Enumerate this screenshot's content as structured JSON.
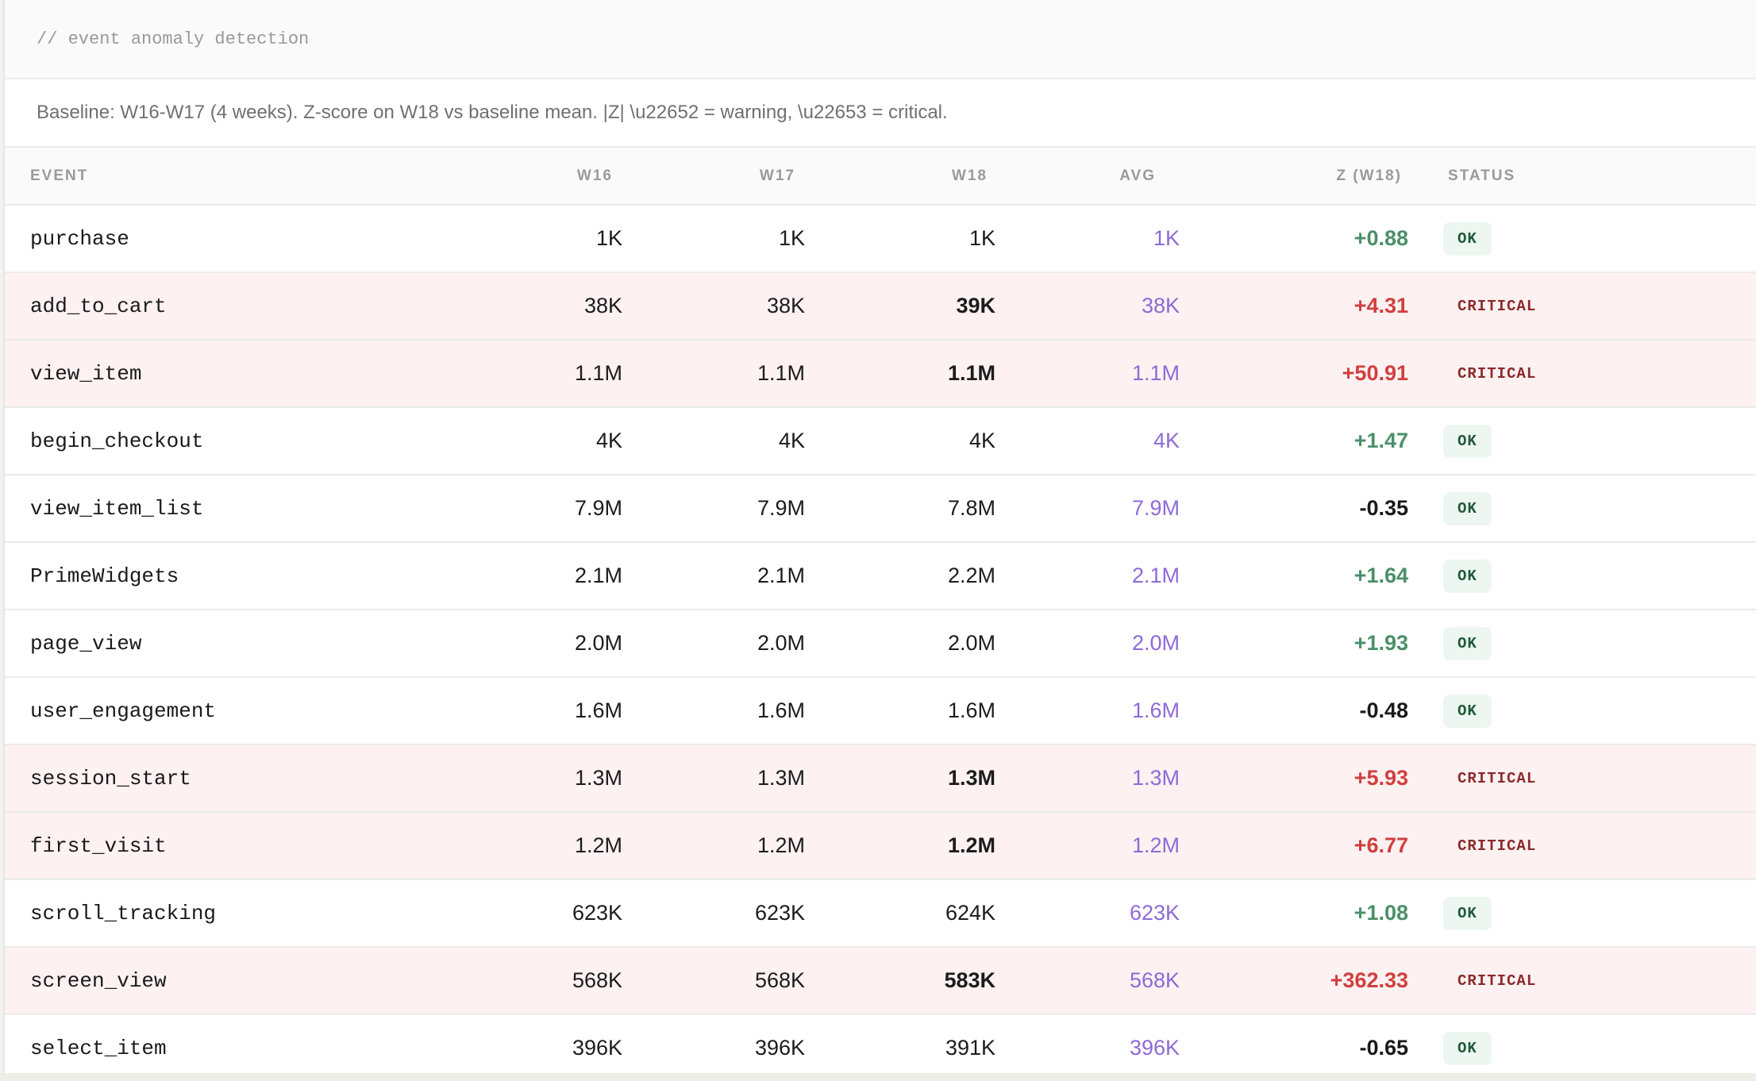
{
  "header": {
    "title": "// event anomaly detection",
    "subtitle": "Baseline: W16-W17 (4 weeks). Z-score on W18 vs baseline mean. |Z| \\u22652 = warning, \\u22653 = critical."
  },
  "table": {
    "columns": {
      "event": "EVENT",
      "w16": "W16",
      "w17": "W17",
      "w18": "W18",
      "avg": "AVG",
      "z": "Z (W18)",
      "status": "STATUS"
    },
    "rows": [
      {
        "event": "purchase",
        "w16": "1K",
        "w17": "1K",
        "w18": "1K",
        "avg": "1K",
        "z": "+0.88",
        "status": "OK"
      },
      {
        "event": "add_to_cart",
        "w16": "38K",
        "w17": "38K",
        "w18": "39K",
        "avg": "38K",
        "z": "+4.31",
        "status": "CRITICAL"
      },
      {
        "event": "view_item",
        "w16": "1.1M",
        "w17": "1.1M",
        "w18": "1.1M",
        "avg": "1.1M",
        "z": "+50.91",
        "status": "CRITICAL"
      },
      {
        "event": "begin_checkout",
        "w16": "4K",
        "w17": "4K",
        "w18": "4K",
        "avg": "4K",
        "z": "+1.47",
        "status": "OK"
      },
      {
        "event": "view_item_list",
        "w16": "7.9M",
        "w17": "7.9M",
        "w18": "7.8M",
        "avg": "7.9M",
        "z": "-0.35",
        "status": "OK"
      },
      {
        "event": "PrimeWidgets",
        "w16": "2.1M",
        "w17": "2.1M",
        "w18": "2.2M",
        "avg": "2.1M",
        "z": "+1.64",
        "status": "OK"
      },
      {
        "event": "page_view",
        "w16": "2.0M",
        "w17": "2.0M",
        "w18": "2.0M",
        "avg": "2.0M",
        "z": "+1.93",
        "status": "OK"
      },
      {
        "event": "user_engagement",
        "w16": "1.6M",
        "w17": "1.6M",
        "w18": "1.6M",
        "avg": "1.6M",
        "z": "-0.48",
        "status": "OK"
      },
      {
        "event": "session_start",
        "w16": "1.3M",
        "w17": "1.3M",
        "w18": "1.3M",
        "avg": "1.3M",
        "z": "+5.93",
        "status": "CRITICAL"
      },
      {
        "event": "first_visit",
        "w16": "1.2M",
        "w17": "1.2M",
        "w18": "1.2M",
        "avg": "1.2M",
        "z": "+6.77",
        "status": "CRITICAL"
      },
      {
        "event": "scroll_tracking",
        "w16": "623K",
        "w17": "623K",
        "w18": "624K",
        "avg": "623K",
        "z": "+1.08",
        "status": "OK"
      },
      {
        "event": "screen_view",
        "w16": "568K",
        "w17": "568K",
        "w18": "583K",
        "avg": "568K",
        "z": "+362.33",
        "status": "CRITICAL"
      },
      {
        "event": "select_item",
        "w16": "396K",
        "w17": "396K",
        "w18": "391K",
        "avg": "396K",
        "z": "-0.65",
        "status": "OK"
      }
    ]
  },
  "colors": {
    "critical_row": "#fdf1f1",
    "z_positive": "#4a9068",
    "z_critical": "#d13f3f",
    "avg_text": "#8e6ad8",
    "ok_badge_bg": "#edf6f0",
    "critical_badge_text": "#8a2a2a"
  }
}
